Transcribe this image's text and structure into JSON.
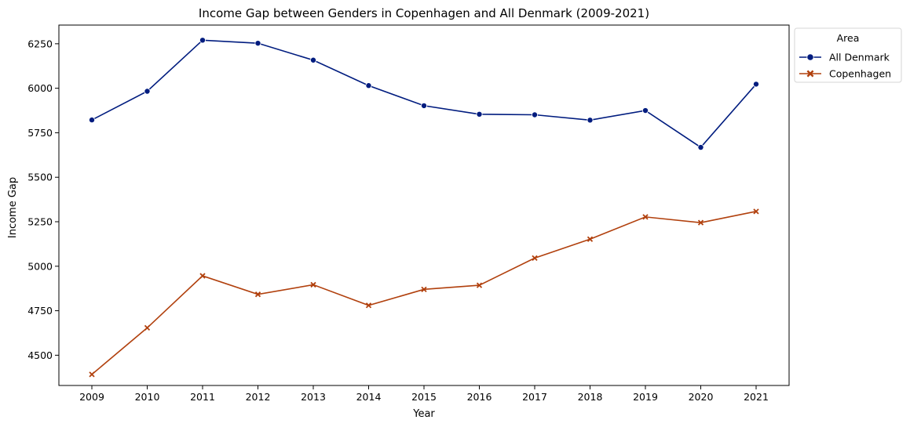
{
  "chart_data": {
    "type": "line",
    "title": "Income Gap between Genders in Copenhagen and All Denmark (2009-2021)",
    "xlabel": "Year",
    "ylabel": "Income Gap",
    "x": [
      "2009",
      "2010",
      "2011",
      "2012",
      "2013",
      "2014",
      "2015",
      "2016",
      "2017",
      "2018",
      "2019",
      "2020",
      "2021"
    ],
    "ylim": [
      4330,
      6355
    ],
    "yticks": [
      4500,
      4750,
      5000,
      5250,
      5500,
      5750,
      6000,
      6250
    ],
    "grid": false,
    "legend": {
      "title": "Area",
      "placement": "outside-top-right"
    },
    "series": [
      {
        "name": "All Denmark",
        "color": "#001c7f",
        "marker": "circle",
        "values": [
          5822,
          5983,
          6270,
          6253,
          6158,
          6015,
          5902,
          5854,
          5851,
          5821,
          5875,
          5668,
          6023
        ]
      },
      {
        "name": "Copenhagen",
        "color": "#b1400d",
        "marker": "x",
        "values": [
          4392,
          4654,
          4946,
          4842,
          4896,
          4780,
          4870,
          4893,
          5046,
          5152,
          5277,
          5245,
          5308
        ]
      }
    ]
  }
}
